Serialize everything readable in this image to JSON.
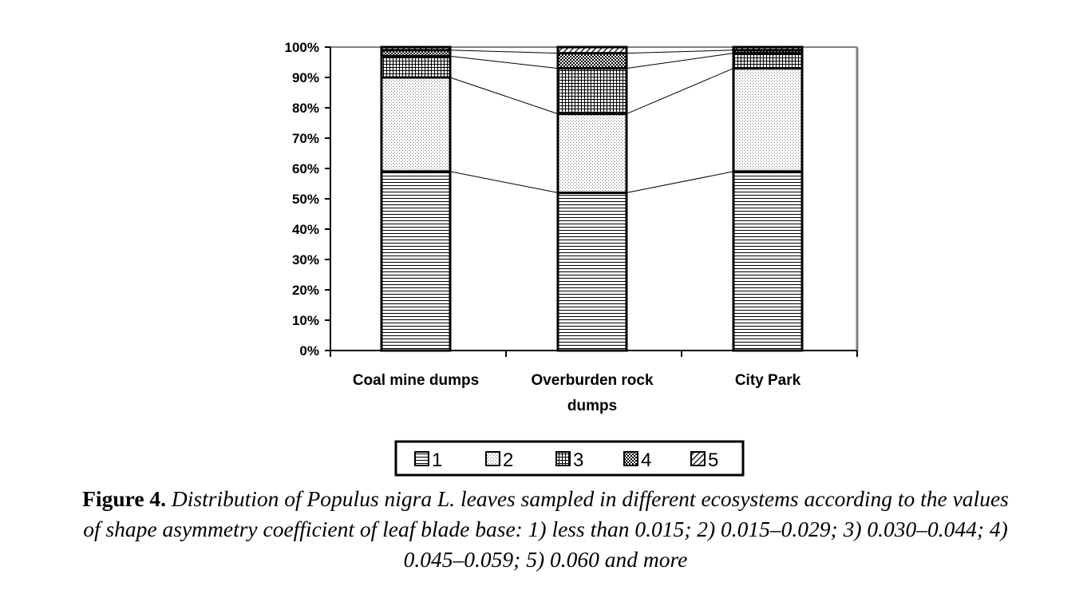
{
  "chart_data": {
    "type": "bar",
    "stacked": true,
    "percent_stacked": true,
    "categories": [
      "Coal mine dumps",
      "Overburden rock dumps",
      "City Park"
    ],
    "series": [
      {
        "name": "1",
        "values": [
          59,
          52,
          59
        ]
      },
      {
        "name": "2",
        "values": [
          31,
          26,
          34
        ]
      },
      {
        "name": "3",
        "values": [
          7,
          15,
          5
        ]
      },
      {
        "name": "4",
        "values": [
          2,
          5,
          1
        ]
      },
      {
        "name": "5",
        "values": [
          1,
          2,
          1
        ]
      }
    ],
    "ylim": [
      0,
      100
    ],
    "yticks": [
      "0%",
      "10%",
      "20%",
      "30%",
      "40%",
      "50%",
      "60%",
      "70%",
      "80%",
      "90%",
      "100%"
    ],
    "series_lines": true,
    "grid": false,
    "legend_position": "bottom",
    "colors": {
      "bar_fill": "#ffffff",
      "bar_stroke": "#000000",
      "pattern": "#000000"
    }
  },
  "caption": {
    "figure_number": "Figure 4.",
    "text": "Distribution of Populus nigra L. leaves sampled in different ecosystems according to the values of shape asymmetry coefficient of leaf blade base: 1) less than 0.015; 2) 0.015–0.029; 3) 0.030–0.044; 4) 0.045–0.059; 5) 0.060 and more"
  }
}
